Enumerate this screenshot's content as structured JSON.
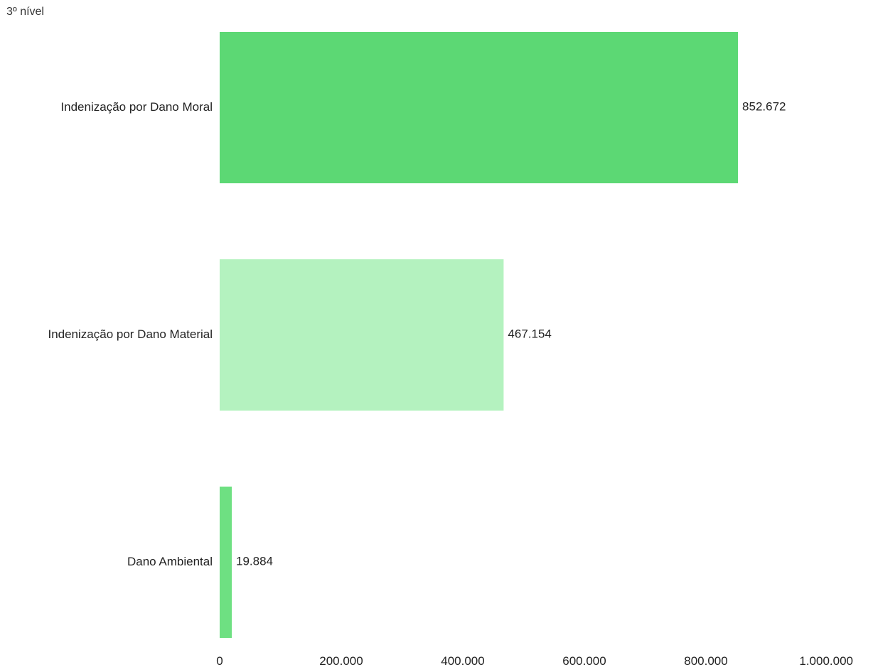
{
  "chart_data": {
    "type": "bar",
    "orientation": "horizontal",
    "title": "3º nível",
    "categories": [
      "Indenização por Dano Moral",
      "Indenização por Dano Material",
      "Dano Ambiental"
    ],
    "values": [
      852672,
      467154,
      19884
    ],
    "value_labels": [
      "852.672",
      "467.154",
      "19.884"
    ],
    "bar_colors": [
      "#5cd874",
      "#b4f2bf",
      "#6ee082"
    ],
    "xlim": [
      0,
      1000000
    ],
    "x_ticks": [
      0,
      200000,
      400000,
      600000,
      800000,
      1000000
    ],
    "x_tick_labels": [
      "0",
      "200.000",
      "400.000",
      "600.000",
      "800.000",
      "1.000.000"
    ],
    "grid": false,
    "legend": "none"
  }
}
